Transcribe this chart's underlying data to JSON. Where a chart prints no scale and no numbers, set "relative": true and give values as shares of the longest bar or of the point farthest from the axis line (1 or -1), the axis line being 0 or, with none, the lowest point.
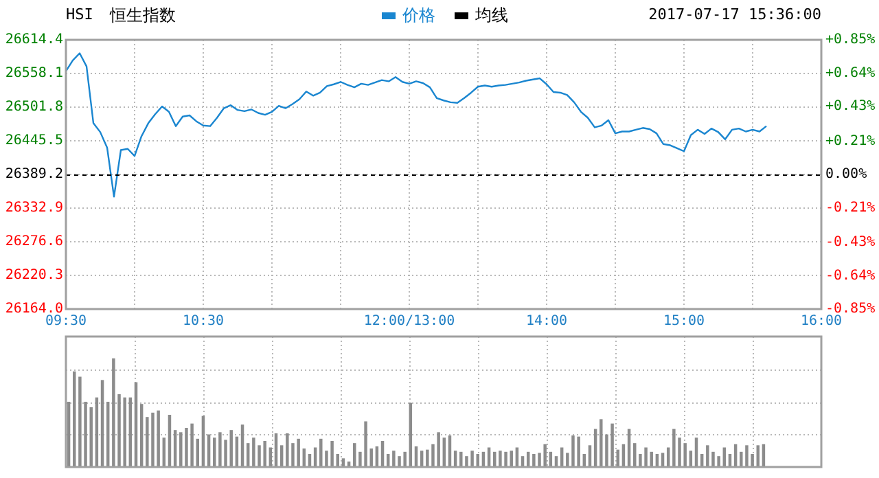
{
  "chart_data": [
    {
      "type": "line",
      "title": "恒生指数",
      "annotations": [
        "HSI",
        "2017-07-17 15:36:00"
      ],
      "legend": "top",
      "grid": true,
      "marker": "none",
      "line_style": "solid",
      "categories": [
        "09:30",
        null,
        null,
        null,
        null,
        null,
        null,
        null,
        null,
        null,
        null,
        null,
        null,
        null,
        null,
        null,
        null,
        null,
        null,
        null,
        "10:30",
        null,
        null,
        null,
        null,
        null,
        null,
        null,
        null,
        null,
        null,
        null,
        null,
        null,
        null,
        null,
        null,
        null,
        null,
        null,
        null,
        null,
        null,
        null,
        null,
        null,
        null,
        null,
        null,
        null,
        "12:00/13:00",
        null,
        null,
        null,
        null,
        null,
        null,
        null,
        null,
        null,
        null,
        null,
        null,
        null,
        null,
        null,
        null,
        null,
        null,
        null,
        "14:00",
        null,
        null,
        null,
        null,
        null,
        null,
        null,
        null,
        null,
        null,
        null,
        null,
        null,
        null,
        null,
        null,
        null,
        null,
        null,
        "15:00",
        null,
        null,
        null,
        null,
        null,
        null,
        null,
        null,
        null,
        null,
        null,
        null,
        null,
        null,
        null,
        null,
        null,
        null,
        null,
        "16:00"
      ],
      "series": [
        {
          "name": "价格",
          "color": "#1a86d0",
          "values": [
            26562,
            26580,
            26592,
            26570,
            26475,
            26460,
            26434,
            26352,
            26430,
            26432,
            26420,
            26453,
            26475,
            26490,
            26503,
            26494,
            26470,
            26486,
            26488,
            26478,
            26471,
            26470,
            26484,
            26500,
            26505,
            26497,
            26495,
            26498,
            26492,
            26489,
            26494,
            26504,
            26500,
            26507,
            26515,
            26528,
            26521,
            26526,
            26537,
            26540,
            26544,
            26539,
            26535,
            26541,
            26539,
            26543,
            26547,
            26545,
            26552,
            26544,
            26541,
            26545,
            26542,
            26535,
            26517,
            26513,
            26510,
            26509,
            26517,
            26526,
            26536,
            26538,
            26536,
            26538,
            26539,
            26541,
            26543,
            26546,
            26548,
            26550,
            26540,
            26527,
            26526,
            26522,
            26510,
            26494,
            26484,
            26468,
            26471,
            26480,
            26458,
            26461,
            26461,
            26464,
            26467,
            26465,
            26458,
            26440,
            26438,
            26433,
            26428,
            26455,
            26464,
            26457,
            26466,
            26460,
            26448,
            26464,
            26466,
            26461,
            26464,
            26461,
            26470,
            null,
            null,
            null,
            null,
            null,
            null,
            null,
            null
          ]
        },
        {
          "name": "均线",
          "color": "#000000",
          "values": [
            null,
            null,
            null,
            null,
            null,
            null,
            null,
            null,
            null,
            null,
            null,
            null,
            null,
            null,
            null,
            null,
            null,
            null,
            null,
            null,
            null,
            null,
            null,
            null,
            null,
            null,
            null,
            null,
            null,
            null,
            null,
            null,
            null,
            null,
            null,
            null,
            null,
            null,
            null,
            null,
            null,
            null,
            null,
            null,
            null,
            null,
            null,
            null,
            null,
            null,
            null,
            null,
            null,
            null,
            null,
            null,
            null,
            null,
            null,
            null,
            null,
            null,
            null,
            null,
            null,
            null,
            null,
            null,
            null,
            null,
            null,
            null,
            null,
            null,
            null,
            null,
            null,
            null,
            null,
            null,
            null,
            null,
            null,
            null,
            null,
            null,
            null,
            null,
            null,
            null,
            null,
            null,
            null,
            null,
            null,
            null,
            null,
            null,
            null,
            null,
            null,
            null,
            null,
            null,
            null,
            null,
            null,
            null,
            null,
            null,
            null
          ]
        }
      ],
      "ylim": [
        26164,
        26614.4
      ],
      "yticks": [
        {
          "value": 26164,
          "label": "26164.0"
        },
        26220.3,
        26276.6,
        26332.9,
        26389.2,
        26445.5,
        26501.8,
        26558.1,
        26614.4
      ],
      "y2lim": [
        -0.85,
        0.85
      ],
      "y2ticks": [
        {
          "value": -0.85,
          "label": "-0.85%"
        },
        {
          "value": -0.64,
          "label": "-0.64%"
        },
        {
          "value": -0.43,
          "label": "-0.43%"
        },
        {
          "value": -0.21,
          "label": "-0.21%"
        },
        {
          "value": 0,
          "label": "0.00%"
        },
        {
          "value": 0.21,
          "label": "+0.21%"
        },
        {
          "value": 0.43,
          "label": "+0.43%"
        },
        {
          "value": 0.64,
          "label": "+0.64%"
        },
        {
          "value": 0.85,
          "label": "+0.85%"
        }
      ],
      "ref_lines": [
        {
          "axis": "y",
          "value": 26389.2,
          "color": "#000000",
          "line_style": "dashed"
        }
      ]
    },
    {
      "type": "bar",
      "relative": true,
      "grid": true,
      "color": "#8c8c8c",
      "categories": [
        null,
        null,
        null,
        null,
        null,
        null,
        null,
        null,
        null,
        null,
        null,
        null,
        null,
        null,
        null,
        null,
        null,
        null,
        null,
        null,
        null,
        null,
        null,
        null,
        null,
        null,
        null,
        null,
        null,
        null,
        null,
        null,
        null,
        null,
        null,
        null,
        null,
        null,
        null,
        null,
        null,
        null,
        null,
        null,
        null,
        null,
        null,
        null,
        null,
        null,
        null,
        null,
        null,
        null,
        null,
        null,
        null,
        null,
        null,
        null,
        null,
        null,
        null,
        null,
        null,
        null,
        null,
        null,
        null,
        null,
        null,
        null,
        null,
        null,
        null,
        null,
        null,
        null,
        null,
        null,
        null,
        null,
        null,
        null,
        null,
        null,
        null,
        null,
        null,
        null,
        null,
        null,
        null,
        null,
        null,
        null,
        null,
        null,
        null,
        null,
        null,
        null,
        null,
        null,
        null,
        null,
        null,
        null,
        null,
        null,
        null,
        null,
        null,
        null,
        null,
        null,
        null,
        null,
        null,
        null,
        null,
        null,
        null,
        null,
        null
      ],
      "values": [
        0.6,
        0.88,
        0.83,
        0.6,
        0.55,
        0.64,
        0.8,
        0.6,
        1.0,
        0.67,
        0.64,
        0.64,
        0.78,
        0.58,
        0.46,
        0.5,
        0.52,
        0.27,
        0.48,
        0.34,
        0.32,
        0.36,
        0.4,
        0.26,
        0.47,
        0.3,
        0.27,
        0.32,
        0.25,
        0.34,
        0.28,
        0.39,
        0.22,
        0.27,
        0.2,
        0.24,
        0.18,
        0.31,
        0.2,
        0.31,
        0.22,
        0.26,
        0.17,
        0.12,
        0.18,
        0.26,
        0.15,
        0.24,
        0.12,
        0.08,
        0.05,
        0.22,
        0.14,
        0.42,
        0.17,
        0.19,
        0.24,
        0.12,
        0.15,
        0.1,
        0.14,
        0.59,
        0.19,
        0.15,
        0.16,
        0.21,
        0.32,
        0.27,
        0.29,
        0.15,
        0.14,
        0.1,
        0.15,
        0.12,
        0.14,
        0.18,
        0.14,
        0.15,
        0.14,
        0.15,
        0.18,
        0.1,
        0.14,
        0.12,
        0.13,
        0.21,
        0.14,
        0.1,
        0.18,
        0.13,
        0.29,
        0.28,
        0.12,
        0.2,
        0.35,
        0.44,
        0.3,
        0.4,
        0.16,
        0.21,
        0.35,
        0.22,
        0.12,
        0.18,
        0.14,
        0.12,
        0.13,
        0.18,
        0.35,
        0.27,
        0.22,
        0.15,
        0.27,
        0.12,
        0.2,
        0.14,
        0.1,
        0.18,
        0.12,
        0.21,
        0.14,
        0.2,
        0.12,
        0.2,
        0.21
      ]
    }
  ]
}
